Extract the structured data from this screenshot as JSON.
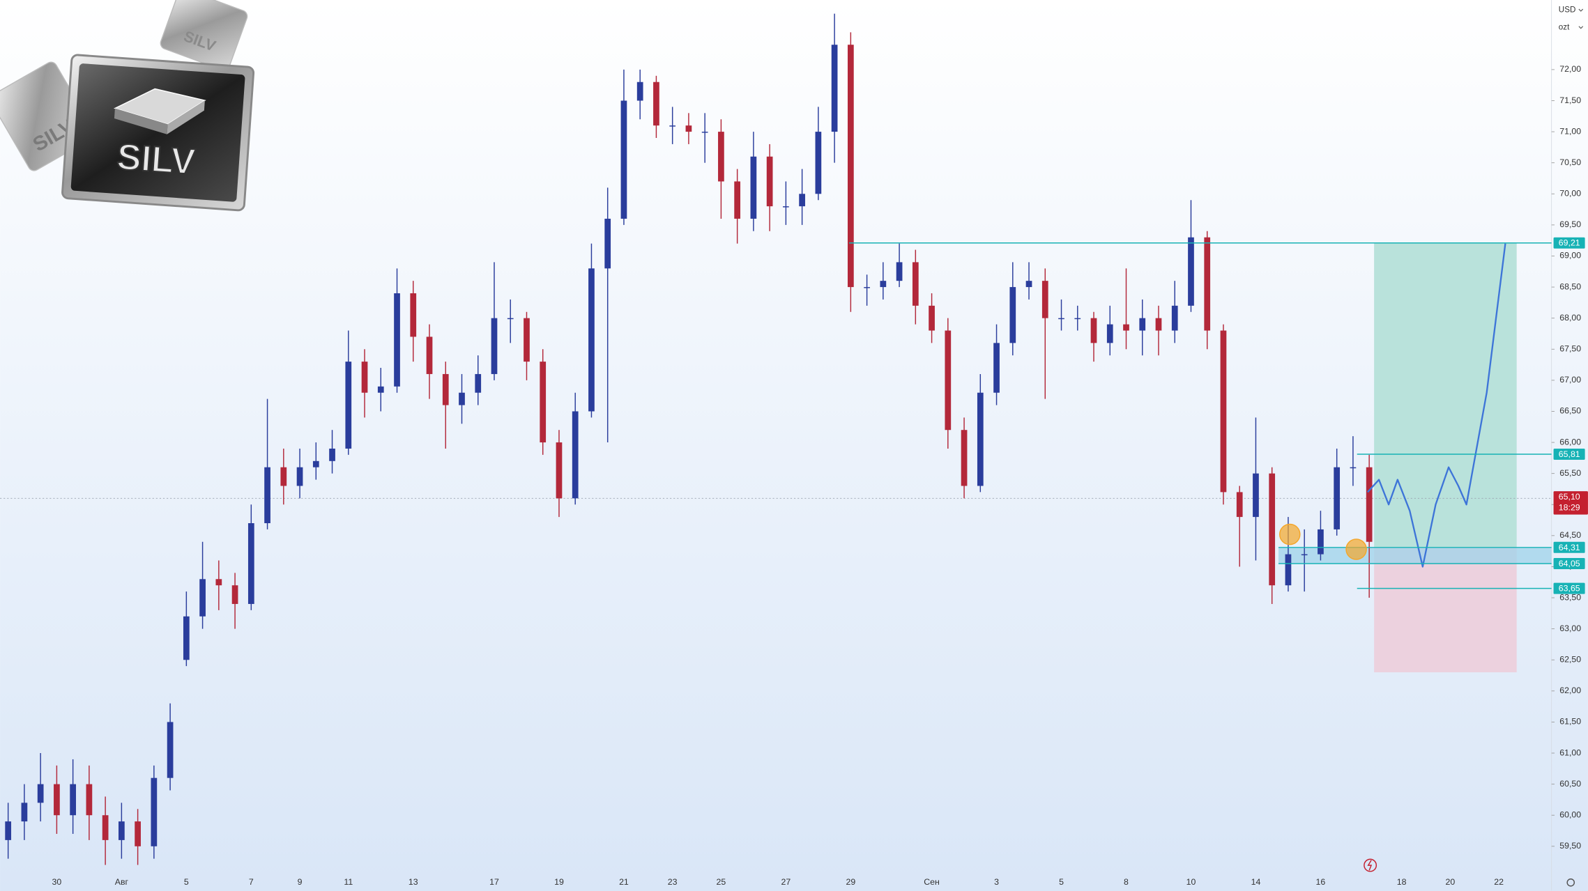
{
  "chart_data": {
    "type": "candlestick",
    "currency": "USD",
    "unit": "ozt",
    "logo": "SILV",
    "categories": [
      null,
      null,
      null,
      "30",
      null,
      null,
      null,
      "Авг",
      null,
      null,
      null,
      "5",
      null,
      null,
      null,
      "7",
      null,
      null,
      "9",
      null,
      null,
      "11",
      null,
      null,
      null,
      "13",
      null,
      null,
      null,
      null,
      "17",
      null,
      null,
      null,
      "19",
      null,
      null,
      null,
      "21",
      null,
      null,
      "23",
      null,
      null,
      "25",
      null,
      null,
      null,
      "27",
      null,
      null,
      null,
      "29",
      null,
      null,
      null,
      null,
      "Сен",
      null,
      null,
      null,
      "3",
      null,
      null,
      null,
      "5",
      null,
      null,
      null,
      "8",
      null,
      null,
      null,
      "10",
      null,
      null,
      null,
      "14",
      null,
      null,
      null,
      "16",
      null,
      null,
      null,
      null,
      "18",
      null,
      null,
      "20",
      null,
      null,
      "22",
      null,
      null,
      null
    ],
    "open": [
      59.6,
      59.9,
      60.2,
      60.5,
      60.0,
      60.5,
      60.0,
      59.6,
      59.9,
      59.5,
      60.6,
      62.5,
      63.2,
      63.8,
      63.7,
      63.4,
      64.7,
      65.6,
      65.3,
      65.6,
      65.7,
      65.9,
      67.3,
      66.8,
      66.9,
      68.4,
      67.7,
      67.1,
      66.6,
      66.8,
      67.1,
      68.0,
      68.0,
      67.3,
      66.0,
      65.1,
      66.5,
      68.8,
      69.6,
      71.5,
      71.8,
      71.1,
      71.1,
      71.0,
      71.0,
      70.2,
      69.6,
      70.6,
      69.8,
      69.8,
      70.0,
      71.0,
      72.4,
      68.5,
      68.5,
      68.6,
      68.9,
      68.2,
      67.8,
      66.2,
      65.3,
      66.8,
      67.6,
      68.5,
      68.6,
      68.0,
      68.0,
      68.0,
      67.6,
      67.9,
      67.8,
      68.0,
      67.8,
      68.2,
      69.3,
      67.8,
      65.2,
      64.8,
      65.5,
      63.7,
      64.2,
      64.2,
      64.6,
      65.6,
      65.6,
      null,
      null,
      null,
      null,
      null,
      null,
      null,
      null,
      null,
      null,
      null
    ],
    "high": [
      60.2,
      60.5,
      61.0,
      60.8,
      60.9,
      60.8,
      60.3,
      60.2,
      60.1,
      60.8,
      61.8,
      63.6,
      64.4,
      64.1,
      63.9,
      65.0,
      66.7,
      65.9,
      65.9,
      66.0,
      66.2,
      67.8,
      67.5,
      67.2,
      68.8,
      68.6,
      67.9,
      67.3,
      67.1,
      67.4,
      68.9,
      68.3,
      68.1,
      67.5,
      66.2,
      66.8,
      69.2,
      70.1,
      72.0,
      72.0,
      71.9,
      71.4,
      71.3,
      71.3,
      71.2,
      70.4,
      71.0,
      70.8,
      70.2,
      70.4,
      71.4,
      72.9,
      72.6,
      68.7,
      68.9,
      69.2,
      69.1,
      68.4,
      68.0,
      66.4,
      67.1,
      67.9,
      68.9,
      68.9,
      68.8,
      68.3,
      68.2,
      68.1,
      68.2,
      68.8,
      68.3,
      68.2,
      68.6,
      69.9,
      69.4,
      67.9,
      65.3,
      66.4,
      65.6,
      64.8,
      64.6,
      64.9,
      65.9,
      66.1,
      65.8,
      null,
      null,
      null,
      null,
      null,
      null,
      null,
      null,
      null,
      null,
      null
    ],
    "low": [
      59.3,
      59.6,
      59.9,
      59.7,
      59.7,
      59.6,
      59.2,
      59.3,
      59.2,
      59.3,
      60.4,
      62.4,
      63.0,
      63.3,
      63.0,
      63.3,
      64.6,
      65.0,
      65.1,
      65.4,
      65.5,
      65.8,
      66.4,
      66.5,
      66.8,
      67.3,
      66.7,
      65.9,
      66.3,
      66.6,
      67.0,
      67.6,
      67.0,
      65.8,
      64.8,
      65.0,
      66.4,
      66.0,
      69.5,
      71.2,
      70.9,
      70.8,
      70.8,
      70.5,
      69.6,
      69.2,
      69.4,
      69.4,
      69.5,
      69.5,
      69.9,
      70.5,
      68.1,
      68.2,
      68.3,
      68.5,
      67.9,
      67.6,
      65.9,
      65.1,
      65.2,
      66.6,
      67.4,
      68.3,
      66.7,
      67.8,
      67.8,
      67.3,
      67.4,
      67.5,
      67.4,
      67.4,
      67.6,
      68.1,
      67.5,
      65.0,
      64.0,
      64.1,
      63.4,
      63.6,
      63.6,
      64.1,
      64.5,
      65.3,
      63.5,
      null,
      null,
      null,
      null,
      null,
      null,
      null,
      null,
      null,
      null,
      null
    ],
    "close": [
      59.9,
      60.2,
      60.5,
      60.0,
      60.5,
      60.0,
      59.6,
      59.9,
      59.5,
      60.6,
      61.5,
      63.2,
      63.8,
      63.7,
      63.4,
      64.7,
      65.6,
      65.3,
      65.6,
      65.7,
      65.9,
      67.3,
      66.8,
      66.9,
      68.4,
      67.7,
      67.1,
      66.6,
      66.8,
      67.1,
      68.0,
      68.0,
      67.3,
      66.0,
      65.1,
      66.5,
      68.8,
      69.6,
      71.5,
      71.8,
      71.1,
      71.1,
      71.0,
      71.0,
      70.2,
      69.6,
      70.6,
      69.8,
      69.8,
      70.0,
      71.0,
      72.4,
      68.5,
      68.5,
      68.6,
      68.9,
      68.2,
      67.8,
      66.2,
      65.3,
      66.8,
      67.6,
      68.5,
      68.6,
      68.0,
      68.0,
      68.0,
      67.6,
      67.9,
      67.8,
      68.0,
      67.8,
      68.2,
      69.3,
      67.8,
      65.2,
      64.8,
      65.5,
      63.7,
      64.2,
      64.2,
      64.6,
      65.6,
      65.6,
      64.4,
      null,
      null,
      null,
      null,
      null,
      null,
      null,
      null,
      null,
      null,
      null
    ],
    "up_color": "#2a3d9c",
    "down_color": "#b3283a",
    "ylim": [
      59.08,
      73.12
    ],
    "yticks": [
      {
        "value": 59.5,
        "label": "59,50"
      },
      {
        "value": 60,
        "label": "60,00"
      },
      {
        "value": 60.5,
        "label": "60,50"
      },
      {
        "value": 61,
        "label": "61,00"
      },
      {
        "value": 61.5,
        "label": "61,50"
      },
      {
        "value": 62,
        "label": "62,00"
      },
      {
        "value": 62.5,
        "label": "62,50"
      },
      {
        "value": 63,
        "label": "63,00"
      },
      {
        "value": 63.5,
        "label": "63,50"
      },
      {
        "value": 64,
        "label": "64,00"
      },
      {
        "value": 64.5,
        "label": "64,50"
      },
      {
        "value": 65,
        "label": "65,00"
      },
      {
        "value": 65.5,
        "label": "65,50"
      },
      {
        "value": 66,
        "label": "66,00"
      },
      {
        "value": 66.5,
        "label": "66,50"
      },
      {
        "value": 67,
        "label": "67,00"
      },
      {
        "value": 67.5,
        "label": "67,50"
      },
      {
        "value": 68,
        "label": "68,00"
      },
      {
        "value": 68.5,
        "label": "68,50"
      },
      {
        "value": 69,
        "label": "69,00"
      },
      {
        "value": 69.5,
        "label": "69,50"
      },
      {
        "value": 70,
        "label": "70,00"
      },
      {
        "value": 70.5,
        "label": "70,50"
      },
      {
        "value": 71,
        "label": "71,00"
      },
      {
        "value": 71.5,
        "label": "71,50"
      },
      {
        "value": 72,
        "label": "72,00"
      }
    ],
    "grid": false,
    "level_color": "#17b2b5",
    "levels": [
      {
        "value": 69.21,
        "label": "69,21",
        "from": 51.9
      },
      {
        "value": 65.81,
        "label": "65,81",
        "from": 83.25
      },
      {
        "value": 64.31,
        "label": "64,31",
        "from": 78.4
      },
      {
        "value": 64.05,
        "label": "64,05",
        "from": 78.4
      },
      {
        "value": 63.65,
        "label": "63,65",
        "from": 83.25
      }
    ],
    "zone": {
      "low": 64.05,
      "high": 64.31,
      "from": 78.4,
      "color": "#9fd3ea"
    },
    "position": {
      "entry": 64.31,
      "target": 69.21,
      "stop": 62.3,
      "x": [
        84.3,
        93.1
      ],
      "profit_color": "#b9e2db",
      "loss_color": "#ecd1de"
    },
    "projection": {
      "x": [
        83.9,
        84.6,
        85.2,
        85.75,
        86.5,
        87.3,
        88.1,
        88.9,
        89.5,
        90.0,
        91.25,
        92.4
      ],
      "values": [
        65.2,
        65.4,
        65.0,
        65.4,
        64.9,
        64.0,
        65.0,
        65.6,
        65.3,
        65.0,
        66.8,
        69.2
      ],
      "color": "#3d74d8"
    },
    "markers": [
      {
        "x": 79.1,
        "value": 64.52
      },
      {
        "x": 83.2,
        "value": 64.28
      }
    ],
    "marker_color": "#f4a62a",
    "current_price": {
      "value": 65.1,
      "label": "65,10",
      "time": "18:29",
      "color": "#c4202f"
    }
  }
}
